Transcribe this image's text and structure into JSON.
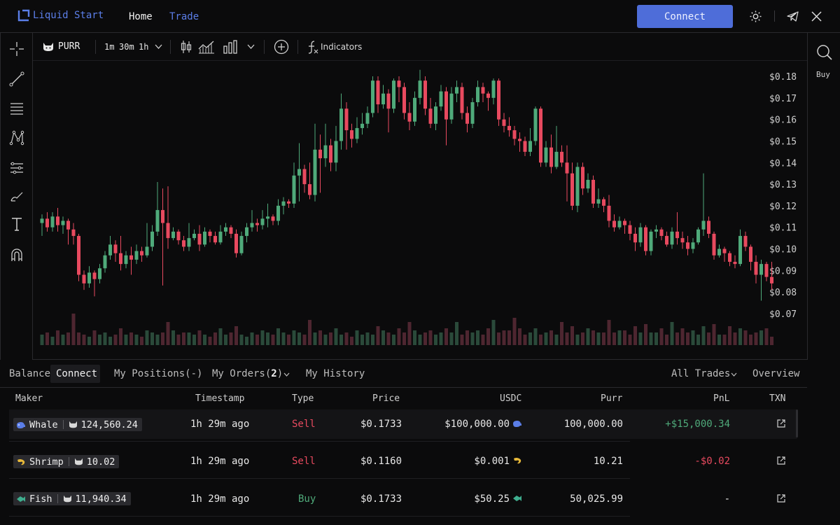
{
  "header": {
    "brand": "Liquid Start",
    "nav": {
      "home": "Home",
      "trade": "Trade"
    },
    "connect_label": "Connect",
    "icons": [
      "sun-icon",
      "telegram-icon",
      "x-icon"
    ]
  },
  "toolbar": {
    "symbol": "PURR",
    "timeframes": [
      "1m",
      "30m",
      "1h"
    ],
    "indicators_label": "Indicators"
  },
  "right_panel": {
    "buy_label": "Buy"
  },
  "chart_data": {
    "type": "candlestick",
    "symbol": "PURR",
    "y_ticks": [
      "$0.18",
      "$0.17",
      "$0.16",
      "$0.15",
      "$0.14",
      "$0.13",
      "$0.12",
      "$0.11",
      "$0.10",
      "$0.09",
      "$0.08",
      "$0.07"
    ],
    "ylim": [
      0.07,
      0.18
    ],
    "candles": [
      [
        0.112,
        0.114,
        0.106,
        0.116
      ],
      [
        0.114,
        0.11,
        0.108,
        0.117
      ],
      [
        0.11,
        0.115,
        0.108,
        0.117
      ],
      [
        0.115,
        0.111,
        0.108,
        0.119
      ],
      [
        0.111,
        0.113,
        0.107,
        0.115
      ],
      [
        0.113,
        0.109,
        0.102,
        0.114
      ],
      [
        0.109,
        0.106,
        0.102,
        0.112
      ],
      [
        0.106,
        0.088,
        0.085,
        0.107
      ],
      [
        0.088,
        0.084,
        0.081,
        0.09
      ],
      [
        0.084,
        0.089,
        0.082,
        0.092
      ],
      [
        0.089,
        0.086,
        0.078,
        0.09
      ],
      [
        0.086,
        0.091,
        0.084,
        0.093
      ],
      [
        0.091,
        0.097,
        0.089,
        0.099
      ],
      [
        0.097,
        0.102,
        0.095,
        0.106
      ],
      [
        0.102,
        0.098,
        0.094,
        0.104
      ],
      [
        0.098,
        0.093,
        0.09,
        0.106
      ],
      [
        0.093,
        0.097,
        0.091,
        0.099
      ],
      [
        0.097,
        0.095,
        0.088,
        0.101
      ],
      [
        0.095,
        0.099,
        0.093,
        0.102
      ],
      [
        0.099,
        0.097,
        0.094,
        0.101
      ],
      [
        0.097,
        0.101,
        0.096,
        0.112
      ],
      [
        0.101,
        0.108,
        0.099,
        0.111
      ],
      [
        0.108,
        0.118,
        0.106,
        0.131
      ],
      [
        0.118,
        0.112,
        0.083,
        0.128
      ],
      [
        0.112,
        0.105,
        0.1,
        0.129
      ],
      [
        0.105,
        0.108,
        0.104,
        0.11
      ],
      [
        0.108,
        0.104,
        0.102,
        0.109
      ],
      [
        0.104,
        0.101,
        0.099,
        0.106
      ],
      [
        0.101,
        0.105,
        0.099,
        0.112
      ],
      [
        0.105,
        0.107,
        0.104,
        0.109
      ],
      [
        0.107,
        0.102,
        0.099,
        0.111
      ],
      [
        0.102,
        0.108,
        0.101,
        0.11
      ],
      [
        0.108,
        0.106,
        0.103,
        0.109
      ],
      [
        0.106,
        0.103,
        0.102,
        0.108
      ],
      [
        0.103,
        0.108,
        0.102,
        0.111
      ],
      [
        0.108,
        0.11,
        0.106,
        0.112
      ],
      [
        0.11,
        0.107,
        0.105,
        0.111
      ],
      [
        0.107,
        0.098,
        0.096,
        0.109
      ],
      [
        0.098,
        0.106,
        0.097,
        0.108
      ],
      [
        0.106,
        0.11,
        0.103,
        0.112
      ],
      [
        0.11,
        0.112,
        0.108,
        0.118
      ],
      [
        0.112,
        0.111,
        0.108,
        0.114
      ],
      [
        0.111,
        0.114,
        0.109,
        0.118
      ],
      [
        0.114,
        0.115,
        0.11,
        0.121
      ],
      [
        0.115,
        0.113,
        0.111,
        0.116
      ],
      [
        0.113,
        0.12,
        0.111,
        0.123
      ],
      [
        0.12,
        0.122,
        0.116,
        0.124
      ],
      [
        0.122,
        0.121,
        0.119,
        0.123
      ],
      [
        0.121,
        0.134,
        0.119,
        0.14
      ],
      [
        0.134,
        0.137,
        0.122,
        0.149
      ],
      [
        0.137,
        0.13,
        0.126,
        0.139
      ],
      [
        0.13,
        0.125,
        0.123,
        0.14
      ],
      [
        0.125,
        0.146,
        0.122,
        0.158
      ],
      [
        0.146,
        0.142,
        0.126,
        0.153
      ],
      [
        0.142,
        0.148,
        0.138,
        0.158
      ],
      [
        0.148,
        0.14,
        0.136,
        0.151
      ],
      [
        0.14,
        0.15,
        0.136,
        0.157
      ],
      [
        0.15,
        0.165,
        0.146,
        0.172
      ],
      [
        0.165,
        0.155,
        0.146,
        0.168
      ],
      [
        0.155,
        0.151,
        0.147,
        0.158
      ],
      [
        0.151,
        0.156,
        0.149,
        0.161
      ],
      [
        0.156,
        0.158,
        0.153,
        0.163
      ],
      [
        0.158,
        0.163,
        0.156,
        0.166
      ],
      [
        0.163,
        0.178,
        0.161,
        0.18
      ],
      [
        0.178,
        0.167,
        0.163,
        0.18
      ],
      [
        0.167,
        0.172,
        0.165,
        0.176
      ],
      [
        0.172,
        0.165,
        0.154,
        0.174
      ],
      [
        0.165,
        0.178,
        0.163,
        0.179
      ],
      [
        0.178,
        0.175,
        0.168,
        0.18
      ],
      [
        0.175,
        0.163,
        0.16,
        0.177
      ],
      [
        0.163,
        0.159,
        0.155,
        0.168
      ],
      [
        0.159,
        0.17,
        0.157,
        0.173
      ],
      [
        0.17,
        0.178,
        0.167,
        0.183
      ],
      [
        0.178,
        0.165,
        0.162,
        0.18
      ],
      [
        0.165,
        0.158,
        0.156,
        0.17
      ],
      [
        0.158,
        0.166,
        0.155,
        0.168
      ],
      [
        0.166,
        0.173,
        0.164,
        0.176
      ],
      [
        0.173,
        0.16,
        0.148,
        0.175
      ],
      [
        0.16,
        0.172,
        0.158,
        0.175
      ],
      [
        0.172,
        0.175,
        0.168,
        0.178
      ],
      [
        0.175,
        0.163,
        0.16,
        0.177
      ],
      [
        0.163,
        0.158,
        0.154,
        0.166
      ],
      [
        0.158,
        0.168,
        0.156,
        0.17
      ],
      [
        0.168,
        0.175,
        0.166,
        0.178
      ],
      [
        0.175,
        0.172,
        0.168,
        0.177
      ],
      [
        0.172,
        0.17,
        0.164,
        0.173
      ],
      [
        0.17,
        0.178,
        0.167,
        0.179
      ],
      [
        0.178,
        0.16,
        0.157,
        0.179
      ],
      [
        0.16,
        0.157,
        0.154,
        0.163
      ],
      [
        0.157,
        0.155,
        0.152,
        0.161
      ],
      [
        0.155,
        0.151,
        0.148,
        0.157
      ],
      [
        0.151,
        0.15,
        0.145,
        0.154
      ],
      [
        0.15,
        0.145,
        0.143,
        0.152
      ],
      [
        0.145,
        0.15,
        0.143,
        0.156
      ],
      [
        0.15,
        0.165,
        0.148,
        0.166
      ],
      [
        0.165,
        0.14,
        0.138,
        0.166
      ],
      [
        0.14,
        0.147,
        0.138,
        0.15
      ],
      [
        0.147,
        0.138,
        0.135,
        0.153
      ],
      [
        0.138,
        0.145,
        0.137,
        0.157
      ],
      [
        0.145,
        0.14,
        0.138,
        0.148
      ],
      [
        0.14,
        0.135,
        0.122,
        0.148
      ],
      [
        0.135,
        0.12,
        0.118,
        0.14
      ],
      [
        0.12,
        0.138,
        0.117,
        0.14
      ],
      [
        0.138,
        0.128,
        0.125,
        0.14
      ],
      [
        0.128,
        0.132,
        0.126,
        0.135
      ],
      [
        0.132,
        0.121,
        0.119,
        0.134
      ],
      [
        0.121,
        0.123,
        0.119,
        0.128
      ],
      [
        0.123,
        0.12,
        0.117,
        0.124
      ],
      [
        0.12,
        0.113,
        0.11,
        0.125
      ],
      [
        0.113,
        0.11,
        0.108,
        0.116
      ],
      [
        0.11,
        0.113,
        0.109,
        0.115
      ],
      [
        0.113,
        0.111,
        0.107,
        0.114
      ],
      [
        0.111,
        0.107,
        0.104,
        0.113
      ],
      [
        0.107,
        0.103,
        0.099,
        0.11
      ],
      [
        0.103,
        0.11,
        0.101,
        0.112
      ],
      [
        0.11,
        0.099,
        0.097,
        0.111
      ],
      [
        0.099,
        0.108,
        0.097,
        0.109
      ],
      [
        0.108,
        0.109,
        0.105,
        0.111
      ],
      [
        0.109,
        0.106,
        0.104,
        0.11
      ],
      [
        0.106,
        0.102,
        0.101,
        0.108
      ],
      [
        0.102,
        0.108,
        0.1,
        0.11
      ],
      [
        0.108,
        0.105,
        0.102,
        0.117
      ],
      [
        0.105,
        0.103,
        0.1,
        0.108
      ],
      [
        0.103,
        0.1,
        0.097,
        0.106
      ],
      [
        0.1,
        0.103,
        0.098,
        0.105
      ],
      [
        0.103,
        0.109,
        0.102,
        0.11
      ],
      [
        0.109,
        0.113,
        0.106,
        0.135
      ],
      [
        0.113,
        0.107,
        0.105,
        0.115
      ],
      [
        0.107,
        0.097,
        0.095,
        0.108
      ],
      [
        0.097,
        0.1,
        0.096,
        0.102
      ],
      [
        0.1,
        0.098,
        0.094,
        0.101
      ],
      [
        0.098,
        0.094,
        0.092,
        0.099
      ],
      [
        0.094,
        0.093,
        0.091,
        0.097
      ],
      [
        0.093,
        0.106,
        0.092,
        0.109
      ],
      [
        0.106,
        0.101,
        0.099,
        0.108
      ],
      [
        0.101,
        0.094,
        0.09,
        0.102
      ],
      [
        0.094,
        0.088,
        0.084,
        0.097
      ],
      [
        0.088,
        0.093,
        0.076,
        0.095
      ],
      [
        0.093,
        0.087,
        0.085,
        0.094
      ],
      [
        0.087,
        0.084,
        0.081,
        0.094
      ]
    ],
    "volume": [
      5,
      6,
      4,
      7,
      5,
      6,
      15,
      6,
      5,
      4,
      7,
      5,
      6,
      4,
      5,
      8,
      5,
      6,
      5,
      4,
      7,
      6,
      5,
      6,
      11,
      7,
      5,
      6,
      6,
      5,
      7,
      5,
      4,
      6,
      8,
      5,
      6,
      9,
      5,
      4,
      6,
      5,
      7,
      6,
      5,
      8,
      6,
      5,
      7,
      6,
      5,
      12,
      6,
      7,
      5,
      6,
      8,
      5,
      6,
      4,
      7,
      5,
      6,
      5,
      9,
      7,
      6,
      5,
      8,
      6,
      11,
      7,
      5,
      6,
      7,
      5,
      6,
      8,
      6,
      11,
      5,
      7,
      6,
      7,
      5,
      8,
      12,
      6,
      7,
      7,
      13,
      8,
      5,
      6,
      8,
      5,
      6,
      7,
      5,
      11,
      6,
      9,
      5,
      6,
      8,
      7,
      6,
      6,
      12,
      6,
      7,
      7,
      5,
      9,
      6,
      10,
      6,
      6,
      8,
      5,
      11,
      6,
      8,
      6,
      7,
      5,
      9,
      6,
      10,
      5,
      5,
      9,
      6,
      8,
      7,
      5,
      6,
      7,
      8,
      4
    ]
  },
  "bottom_tabs": {
    "balance": "Balance",
    "connect": "Connect",
    "my_positions": "My Positions(-)",
    "my_orders_prefix": "My Orders(",
    "my_orders_count": "2",
    "my_orders_suffix": ")",
    "my_history": "My History",
    "all_trades": "All Trades",
    "overview": "Overview"
  },
  "table": {
    "headers": {
      "maker": "Maker",
      "timestamp": "Timestamp",
      "type": "Type",
      "price": "Price",
      "usdc": "USDC",
      "purr": "Purr",
      "pnl": "PnL",
      "txn": "TXN"
    },
    "rows": [
      {
        "maker": "Whale",
        "maker_icon": "whale-icon",
        "holding": "124,560.24",
        "timestamp": "1h 29m ago",
        "type": "Sell",
        "price": "$0.1733",
        "usdc": "$100,000.00",
        "purr": "100,000.00",
        "pnl": "+$15,000.34"
      },
      {
        "maker": "Shrimp",
        "maker_icon": "shrimp-icon",
        "holding": "10.02",
        "timestamp": "1h 29m ago",
        "type": "Sell",
        "price": "$0.1160",
        "usdc": "$0.001",
        "purr": "10.21",
        "pnl": "-$0.02"
      },
      {
        "maker": "Fish",
        "maker_icon": "fish-icon",
        "holding": "11,940.34",
        "timestamp": "1h 29m ago",
        "type": "Buy",
        "price": "$0.1733",
        "usdc": "$50.25",
        "purr": "50,025.99",
        "pnl": "-"
      }
    ]
  },
  "colors": {
    "up": "#4faa7a",
    "down": "#e84a5f",
    "accent": "#4e6dd9",
    "brand": "#5b7ee8"
  }
}
